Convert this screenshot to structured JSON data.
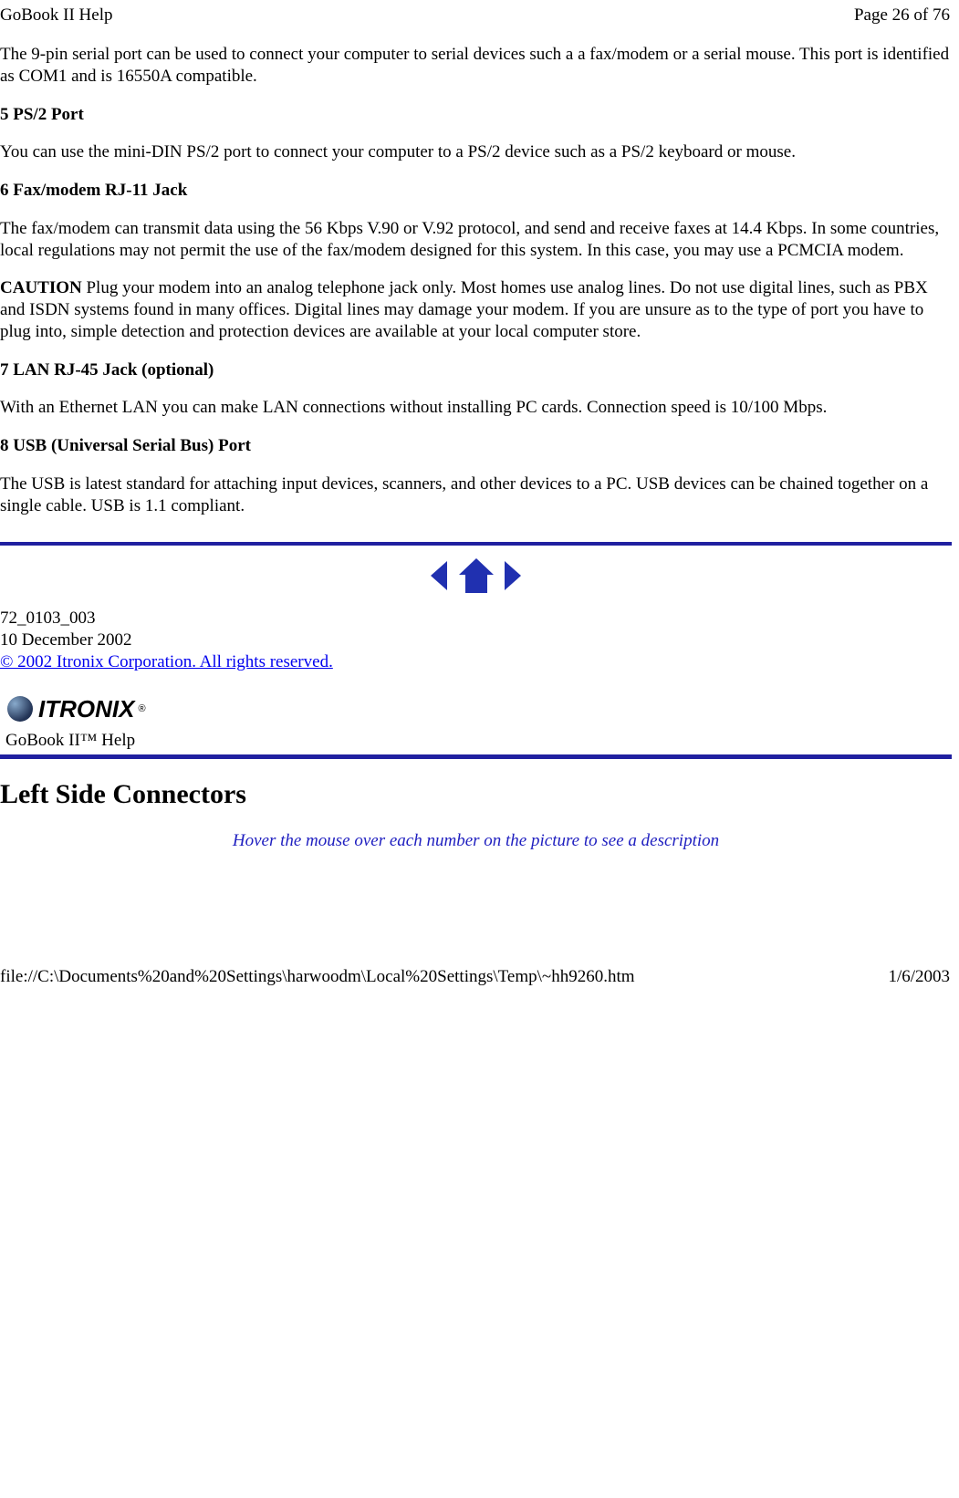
{
  "header": {
    "title": "GoBook II Help",
    "page_info": "Page 26 of 76"
  },
  "body": {
    "intro_serial": "The 9-pin serial port can be used to connect your computer to serial devices such a a fax/modem or a serial mouse.  This port is identified as COM1 and is 16550A compatible.",
    "s5_heading": "5  PS/2 Port",
    "s5_text": "You can use the mini-DIN PS/2 port to connect your computer to a PS/2 device such as a PS/2 keyboard or mouse.",
    "s6_heading": "6  Fax/modem RJ-11 Jack",
    "s6_text": "The fax/modem can transmit data using the 56 Kbps V.90 or V.92 protocol, and send and receive faxes at 14.4 Kbps.  In some countries, local regulations may not permit the use of the fax/modem designed for this system.  In this case, you may use a PCMCIA modem.",
    "caution_label": "CAUTION",
    "caution_text": " Plug your modem into an analog telephone jack only.  Most homes use analog lines.  Do not use digital lines, such as PBX and ISDN systems found in many offices.  Digital lines may damage your modem.  If you are unsure as to the type of port you have to plug into, simple detection and protection devices are available at your local computer store.",
    "s7_heading": "7 LAN RJ-45 Jack (optional)",
    "s7_text": "With an Ethernet LAN you can make LAN connections without installing PC cards.  Connection speed is 10/100 Mbps.",
    "s8_heading": "8 USB (Universal Serial Bus) Port",
    "s8_text": "The USB is latest standard for attaching input devices, scanners, and other devices to a PC.  USB devices can be chained together on a single cable.  USB is 1.1 compliant."
  },
  "meta": {
    "doc_id": "72_0103_003",
    "date": "10 December 2002",
    "copyright": "© 2002 Itronix Corporation.  All rights reserved."
  },
  "brand": {
    "logo_text": "ITRONIX",
    "help_label": "GoBook II™ Help"
  },
  "section": {
    "heading": "Left Side Connectors",
    "hover_note": "Hover the mouse over each number on the picture to see a description"
  },
  "footer": {
    "path": "file://C:\\Documents%20and%20Settings\\harwoodm\\Local%20Settings\\Temp\\~hh9260.htm",
    "date": "1/6/2003"
  },
  "colors": {
    "rule_blue": "#2020a0",
    "link_blue": "#0000ee",
    "note_blue": "#2020c0"
  }
}
